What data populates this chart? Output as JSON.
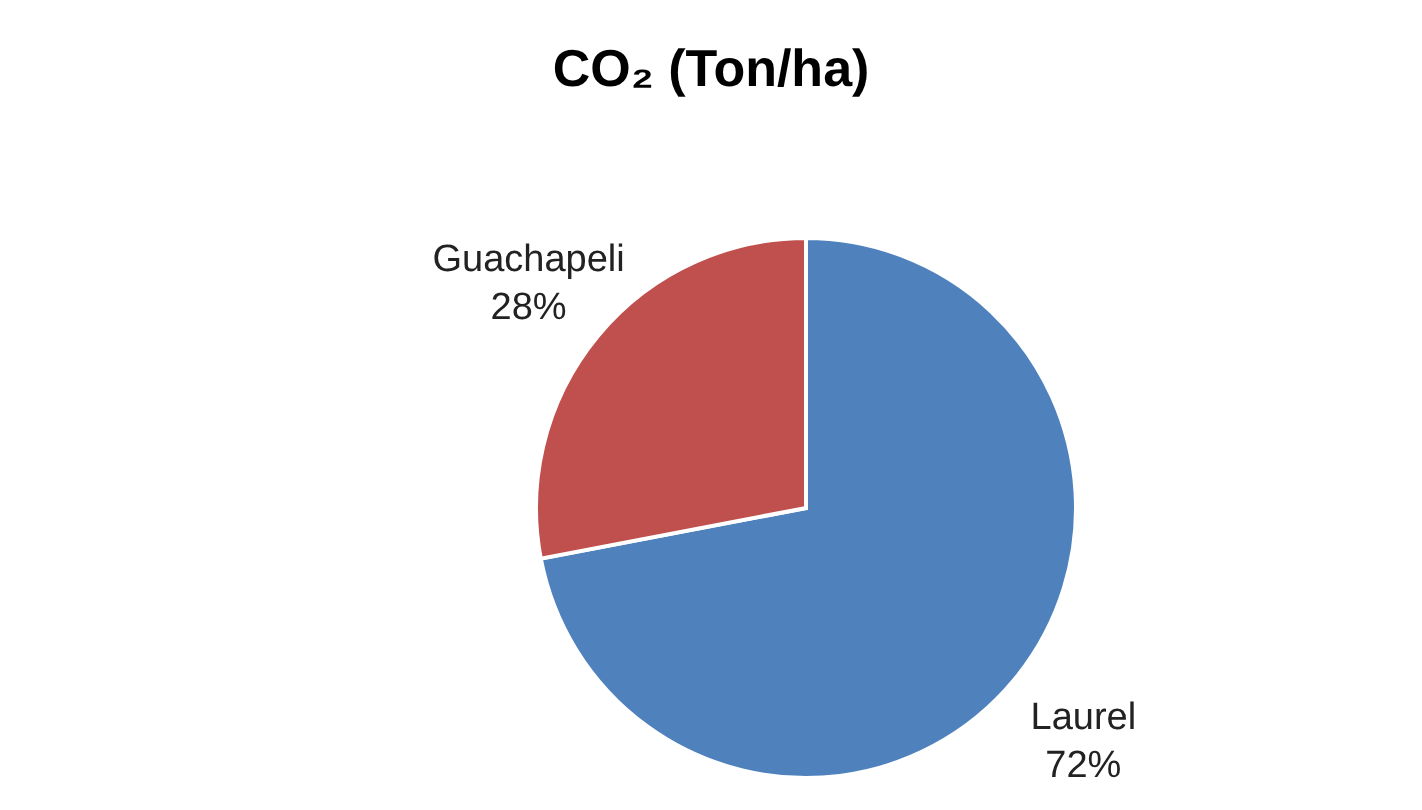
{
  "chart_data": {
    "type": "pie",
    "title": "CO₂ (Ton/ha)",
    "categories": [
      "Laurel",
      "Guachapeli"
    ],
    "values": [
      72,
      28
    ],
    "colors": [
      "#4f81bd",
      "#c0504d"
    ],
    "value_labels": [
      "72%",
      "28%"
    ],
    "legend": false
  }
}
